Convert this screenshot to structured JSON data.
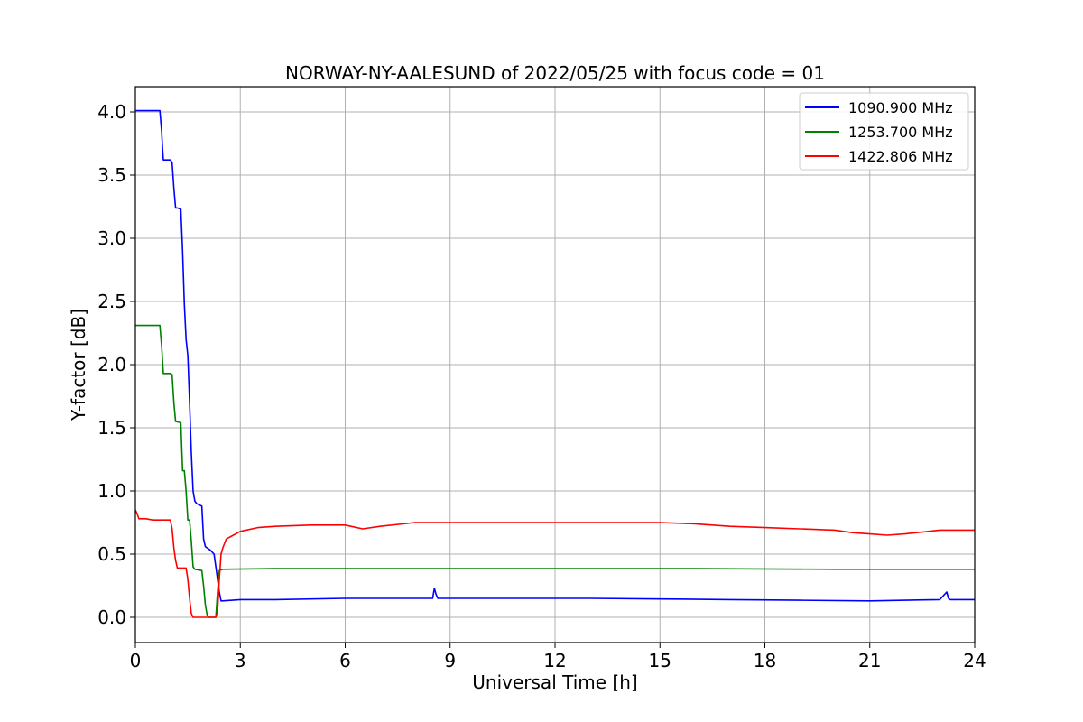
{
  "chart_data": {
    "type": "line",
    "title": "NORWAY-NY-AALESUND of 2022/05/25 with focus code = 01",
    "xlabel": "Universal Time [h]",
    "ylabel": "Y-factor [dB]",
    "xlim": [
      0,
      24
    ],
    "ylim": [
      -0.2,
      4.2
    ],
    "xticks": [
      0,
      3,
      6,
      9,
      12,
      15,
      18,
      21,
      24
    ],
    "xtick_labels": [
      "0",
      "3",
      "6",
      "9",
      "12",
      "15",
      "18",
      "21",
      "24"
    ],
    "yticks": [
      0.0,
      0.5,
      1.0,
      1.5,
      2.0,
      2.5,
      3.0,
      3.5,
      4.0
    ],
    "ytick_labels": [
      "0.0",
      "0.5",
      "1.0",
      "1.5",
      "2.0",
      "2.5",
      "3.0",
      "3.5",
      "4.0"
    ],
    "grid": true,
    "legend_position": "top-right",
    "series": [
      {
        "name": "1090.900 MHz",
        "color": "#0000ff",
        "x": [
          0.0,
          0.7,
          0.75,
          0.78,
          0.8,
          1.0,
          1.05,
          1.1,
          1.15,
          1.2,
          1.3,
          1.35,
          1.4,
          1.45,
          1.5,
          1.55,
          1.6,
          1.65,
          1.7,
          1.75,
          1.9,
          1.95,
          2.0,
          2.05,
          2.15,
          2.25,
          2.3,
          2.35,
          2.4,
          2.45,
          2.5,
          3.0,
          4.0,
          6.0,
          8.0,
          8.5,
          8.55,
          8.6,
          8.65,
          9.0,
          11.0,
          13.0,
          15.0,
          17.0,
          19.0,
          21.0,
          23.0,
          23.2,
          23.25,
          23.3,
          24.0
        ],
        "y": [
          4.01,
          4.01,
          3.85,
          3.7,
          3.62,
          3.62,
          3.6,
          3.4,
          3.24,
          3.24,
          3.23,
          2.9,
          2.48,
          2.2,
          2.07,
          1.7,
          1.3,
          1.0,
          0.92,
          0.9,
          0.88,
          0.62,
          0.56,
          0.55,
          0.53,
          0.5,
          0.4,
          0.3,
          0.2,
          0.13,
          0.13,
          0.14,
          0.14,
          0.15,
          0.15,
          0.15,
          0.23,
          0.18,
          0.15,
          0.15,
          0.15,
          0.15,
          0.145,
          0.14,
          0.135,
          0.13,
          0.14,
          0.2,
          0.15,
          0.14,
          0.14
        ]
      },
      {
        "name": "1253.700 MHz",
        "color": "#008000",
        "x": [
          0.0,
          0.7,
          0.75,
          0.8,
          1.0,
          1.05,
          1.1,
          1.15,
          1.3,
          1.35,
          1.4,
          1.45,
          1.5,
          1.55,
          1.6,
          1.65,
          1.7,
          1.9,
          1.95,
          2.0,
          2.05,
          2.1,
          2.2,
          2.3,
          2.35,
          2.4,
          2.5,
          4.0,
          8.0,
          12.0,
          16.0,
          20.0,
          24.0
        ],
        "y": [
          2.31,
          2.31,
          2.15,
          1.93,
          1.93,
          1.92,
          1.7,
          1.55,
          1.54,
          1.16,
          1.16,
          1.0,
          0.77,
          0.77,
          0.6,
          0.4,
          0.38,
          0.37,
          0.25,
          0.1,
          0.02,
          0.0,
          0.0,
          0.0,
          0.2,
          0.37,
          0.38,
          0.385,
          0.385,
          0.385,
          0.385,
          0.38,
          0.38
        ]
      },
      {
        "name": "1422.806 MHz",
        "color": "#ff0000",
        "x": [
          0.0,
          0.05,
          0.1,
          0.3,
          0.5,
          1.0,
          1.05,
          1.1,
          1.15,
          1.2,
          1.3,
          1.45,
          1.5,
          1.55,
          1.6,
          1.65,
          1.7,
          2.3,
          2.35,
          2.4,
          2.45,
          2.5,
          2.6,
          3.0,
          3.5,
          4.0,
          5.0,
          6.0,
          6.5,
          7.0,
          8.0,
          9.0,
          10.0,
          11.0,
          12.0,
          13.0,
          14.0,
          15.0,
          16.0,
          17.0,
          18.0,
          19.0,
          20.0,
          20.5,
          21.0,
          21.5,
          22.0,
          23.0,
          24.0
        ],
        "y": [
          0.85,
          0.82,
          0.78,
          0.78,
          0.77,
          0.77,
          0.7,
          0.55,
          0.45,
          0.39,
          0.39,
          0.39,
          0.3,
          0.15,
          0.03,
          0.0,
          0.0,
          0.0,
          0.05,
          0.3,
          0.5,
          0.55,
          0.62,
          0.68,
          0.71,
          0.72,
          0.73,
          0.73,
          0.7,
          0.72,
          0.75,
          0.75,
          0.75,
          0.75,
          0.75,
          0.75,
          0.75,
          0.75,
          0.74,
          0.72,
          0.71,
          0.7,
          0.69,
          0.67,
          0.66,
          0.65,
          0.66,
          0.69,
          0.69
        ]
      }
    ]
  }
}
